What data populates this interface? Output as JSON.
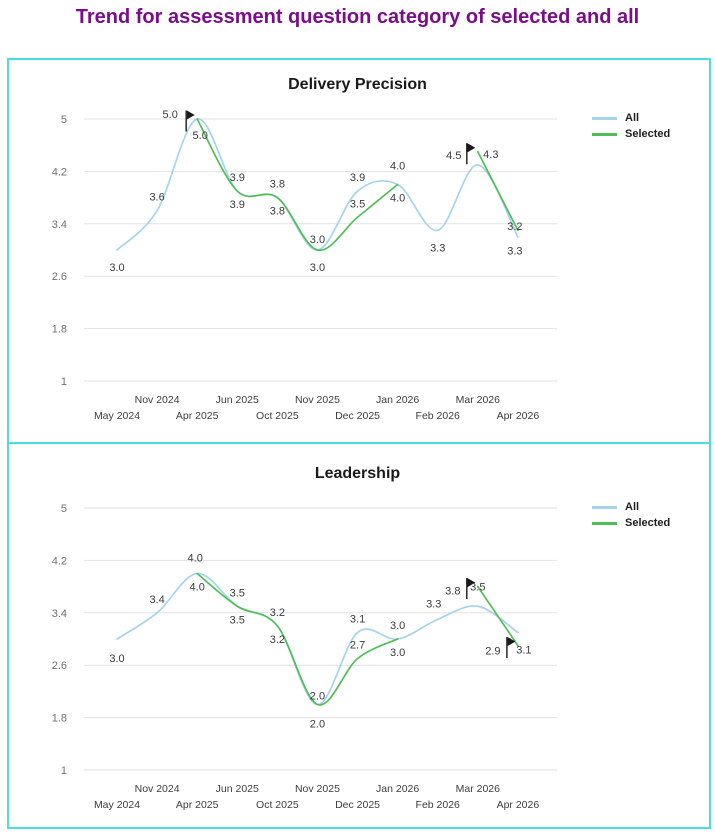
{
  "page_title": "Trend for assessment question category of selected and all",
  "colors": {
    "page_title": "#7B0D8D",
    "card_border": "#4ADCE9",
    "all_series": "#A6D3EE",
    "selected_series": "#50BE57",
    "gridline": "#E2E2E2",
    "data_label": "#3A3A3A",
    "y_tick": "#707070",
    "x_tick": "#3D3D3D",
    "flag": "#1A1A1A"
  },
  "legend": {
    "all_label": "All",
    "selected_label": "Selected"
  },
  "chart_data": [
    {
      "type": "line",
      "title": "Delivery Precision",
      "x": [
        "May 2024",
        "Nov 2024",
        "Apr 2025",
        "Jun 2025",
        "Oct 2025",
        "Nov 2025",
        "Dec 2025",
        "Jan 2026",
        "Feb 2026",
        "Mar 2026",
        "Apr 2026"
      ],
      "ylim": [
        1,
        5
      ],
      "yticks": [
        1,
        1.8,
        2.6,
        3.4,
        4.2,
        5
      ],
      "grid": true,
      "smooth": true,
      "legend_position": "right",
      "series": [
        {
          "name": "All",
          "color_key": "all_series",
          "values": [
            3.0,
            3.6,
            5.0,
            3.9,
            3.8,
            3.0,
            3.9,
            4.0,
            3.3,
            4.3,
            3.2
          ],
          "labels": [
            "3.0",
            "3.6",
            "5.0",
            "3.9",
            "3.8",
            "3.0",
            "3.9",
            "4.0",
            "3.3",
            "4.3",
            "3.2"
          ],
          "label_pos": [
            [
              0,
              17
            ],
            "a",
            [
              3,
              16
            ],
            "a",
            "a",
            [
              0,
              -11
            ],
            "a",
            [
              0,
              -19
            ],
            [
              0,
              17
            ],
            [
              13,
              -11
            ],
            [
              -3,
              -11
            ]
          ]
        },
        {
          "name": "Selected",
          "color_key": "selected_series",
          "values": [
            null,
            null,
            5.0,
            3.9,
            3.8,
            3.0,
            3.5,
            4.0,
            null,
            4.5,
            3.3
          ],
          "labels": [
            null,
            null,
            "5.0",
            "3.9",
            "3.8",
            "3.0",
            "3.5",
            "4.0",
            null,
            "4.5",
            "3.3"
          ],
          "label_pos": [
            null,
            null,
            [
              -27,
              -5
            ],
            "b",
            "b",
            [
              0,
              17
            ],
            "a",
            "b",
            null,
            [
              -24,
              3
            ],
            [
              -3,
              20
            ]
          ]
        }
      ],
      "flags": [
        {
          "x_index": 2,
          "value": 5.0
        },
        {
          "x_index": 9,
          "value": 4.5
        }
      ]
    },
    {
      "type": "line",
      "title": "Leadership",
      "x": [
        "May 2024",
        "Nov 2024",
        "Apr 2025",
        "Jun 2025",
        "Oct 2025",
        "Nov 2025",
        "Dec 2025",
        "Jan 2026",
        "Feb 2026",
        "Mar 2026",
        "Apr 2026"
      ],
      "ylim": [
        1,
        5
      ],
      "yticks": [
        1,
        1.8,
        2.6,
        3.4,
        4.2,
        5
      ],
      "grid": true,
      "smooth": true,
      "legend_position": "right",
      "series": [
        {
          "name": "All",
          "color_key": "all_series",
          "values": [
            3.0,
            3.4,
            4.0,
            3.5,
            3.2,
            2.0,
            3.1,
            3.0,
            3.3,
            3.5,
            3.1
          ],
          "labels": [
            "3.0",
            "3.4",
            "4.0",
            "3.5",
            "3.2",
            "2.0",
            "3.1",
            "3.0",
            "3.3",
            "3.5",
            "3.1"
          ],
          "label_pos": [
            [
              0,
              19
            ],
            "a",
            [
              -2,
              -16
            ],
            "a",
            "a",
            [
              0,
              -9
            ],
            "a",
            "a",
            [
              -4,
              -16
            ],
            [
              0,
              -20
            ],
            [
              6,
              17
            ]
          ]
        },
        {
          "name": "Selected",
          "color_key": "selected_series",
          "values": [
            null,
            null,
            4.0,
            3.5,
            3.2,
            2.0,
            2.7,
            3.0,
            null,
            3.8,
            2.9
          ],
          "labels": [
            null,
            null,
            "4.0",
            "3.5",
            "3.2",
            "2.0",
            "2.7",
            "3.0",
            null,
            "3.8",
            "2.9"
          ],
          "label_pos": [
            null,
            null,
            "b",
            "b",
            "b",
            [
              0,
              19
            ],
            "a",
            "b",
            null,
            [
              -25,
              4
            ],
            [
              -25,
              5
            ]
          ]
        }
      ],
      "flags": [
        {
          "x_index": 9,
          "value": 3.8
        },
        {
          "x_index": 10,
          "value": 2.9
        }
      ]
    }
  ]
}
